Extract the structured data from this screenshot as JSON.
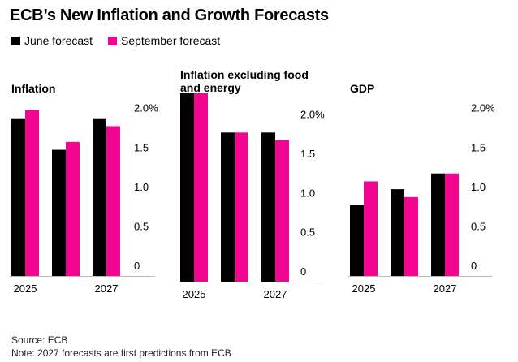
{
  "title": "ECB’s New Inflation and Growth Forecasts",
  "source": "Source: ECB",
  "note": "Note: 2027 forecasts are first predictions from ECB",
  "chart_data": [
    {
      "type": "bar",
      "title": "Inflation",
      "categories": [
        "2025",
        null,
        "2027"
      ],
      "series": [
        {
          "name": "June forecast",
          "color": "#000000",
          "values": [
            2.0,
            1.6,
            2.0
          ]
        },
        {
          "name": "September forecast",
          "color": "#f2058f",
          "values": [
            2.1,
            1.7,
            1.9
          ]
        }
      ],
      "ylim": [
        0,
        2.1
      ],
      "yticks": [
        0,
        0.5,
        {
          "value": 1,
          "label": "1.0"
        },
        1.5,
        {
          "value": 2,
          "label": "2.0%"
        }
      ]
    },
    {
      "type": "bar",
      "title": "Inflation excluding food and energy",
      "categories": [
        "2025",
        null,
        "2027"
      ],
      "series": [
        {
          "name": "June forecast",
          "color": "#000000",
          "values": [
            2.4,
            1.9,
            1.9
          ]
        },
        {
          "name": "September forecast",
          "color": "#f2058f",
          "values": [
            2.4,
            1.9,
            1.8
          ]
        }
      ],
      "ylim": [
        0,
        2.4
      ],
      "yticks": [
        0,
        0.5,
        {
          "value": 1,
          "label": "1.0"
        },
        1.5,
        {
          "value": 2,
          "label": "2.0%"
        }
      ]
    },
    {
      "type": "bar",
      "title": "GDP",
      "categories": [
        "2025",
        null,
        "2027"
      ],
      "series": [
        {
          "name": "June forecast",
          "color": "#000000",
          "values": [
            0.9,
            1.1,
            1.3
          ]
        },
        {
          "name": "September forecast",
          "color": "#f2058f",
          "values": [
            1.2,
            1.0,
            1.3
          ]
        }
      ],
      "ylim": [
        0,
        2.1
      ],
      "yticks": [
        0,
        0.5,
        {
          "value": 1,
          "label": "1.0"
        },
        1.5,
        {
          "value": 2,
          "label": "2.0%"
        }
      ]
    }
  ]
}
